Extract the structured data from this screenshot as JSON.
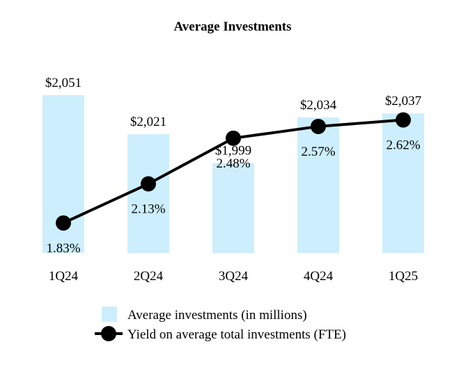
{
  "chart_data": {
    "type": "bar+line",
    "title": "Average Investments",
    "categories": [
      "1Q24",
      "2Q24",
      "3Q24",
      "4Q24",
      "1Q25"
    ],
    "bar_series": {
      "name": "Average investments (in millions)",
      "values": [
        2051,
        2021,
        1999,
        2034,
        2037
      ],
      "labels": [
        "$2,051",
        "$2,021",
        "$1,999",
        "$2,034",
        "$2,037"
      ],
      "color": "#cdeefc",
      "axis_min": 1930,
      "axis_max": 2060
    },
    "line_series": {
      "name": "Yield on average total investments (FTE)",
      "values": [
        1.83,
        2.13,
        2.48,
        2.57,
        2.62
      ],
      "labels": [
        "1.83%",
        "2.13%",
        "2.48%",
        "2.57%",
        "2.62%"
      ],
      "color": "#000000",
      "axis_min": 1.6,
      "axis_max": 2.9
    },
    "legend_position": "bottom",
    "grid": false
  }
}
